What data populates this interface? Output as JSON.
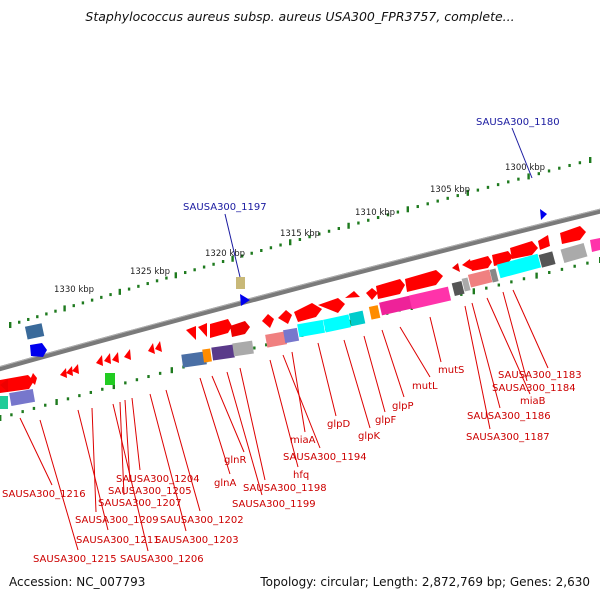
{
  "title": "Staphylococcus aureus subsp. aureus USA300_FPR3757, complete...",
  "footer": {
    "accession": "Accession: NC_007793",
    "summary": "Topology: circular; Length: 2,872,769 bp; Genes: 2,630"
  },
  "scale_labels": [
    "1330 kbp",
    "1325 kbp",
    "1320 kbp",
    "1315 kbp",
    "1310 kbp",
    "1305 kbp",
    "1300 kbp"
  ],
  "blue_labels": [
    "SAUSA300_1197",
    "SAUSA300_1180"
  ],
  "red_labels": [
    "SAUSA300_1216",
    "SAUSA300_1215",
    "SAUSA300_1211",
    "SAUSA300_1209",
    "SAUSA300_1206",
    "SAUSA300_1207",
    "SAUSA300_1205",
    "SAUSA300_1204",
    "SAUSA300_1203",
    "SAUSA300_1202",
    "glnA",
    "glnR",
    "SAUSA300_1199",
    "SAUSA300_1198",
    "hfq",
    "SAUSA300_1194",
    "miaA",
    "glpD",
    "glpK",
    "glpF",
    "glpP",
    "mutL",
    "mutS",
    "SAUSA300_1187",
    "SAUSA300_1186",
    "miaB",
    "SAUSA300_1184",
    "SAUSA300_1183"
  ],
  "colors": {
    "backbone": "#808080",
    "gene_red": "#ff0000",
    "label_red": "#cc0000",
    "label_blue": "#1a1aa0",
    "scale_green": "#1e7a1e",
    "cyan": "#00ffff",
    "magenta": "#ff33aa",
    "pink": "#f08080",
    "slate": "#4a6fa5",
    "purple": "#7777cc",
    "orange": "#ff8c00",
    "gray": "#aaaaaa",
    "darkgray": "#555555",
    "green": "#22cc22",
    "blue": "#0000ff",
    "khaki": "#c8b878"
  }
}
